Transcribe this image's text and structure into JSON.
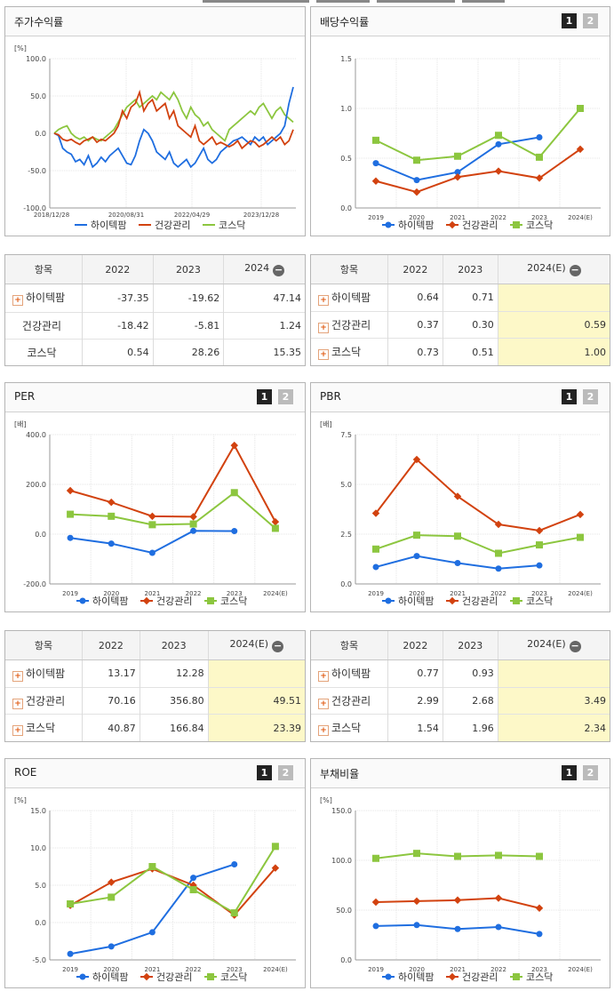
{
  "colors": {
    "s1": "#1f6ee0",
    "s2": "#d2420f",
    "s3": "#8cc63f",
    "grid": "#e4e4e4"
  },
  "legend": [
    "하이텍팜",
    "건강관리",
    "코스닥"
  ],
  "panels": {
    "stock": {
      "title": "주가수익률",
      "unit": "[%]"
    },
    "dividend": {
      "title": "배당수익률",
      "unit": "",
      "pages": [
        "1",
        "2"
      ]
    },
    "per": {
      "title": "PER",
      "unit": "[배]",
      "pages": [
        "1",
        "2"
      ]
    },
    "pbr": {
      "title": "PBR",
      "unit": "[배]",
      "pages": [
        "1",
        "2"
      ]
    },
    "roe": {
      "title": "ROE",
      "unit": "[%]",
      "pages": [
        "1",
        "2"
      ]
    },
    "debt": {
      "title": "부채비율",
      "unit": "[%]",
      "pages": [
        "1",
        "2"
      ]
    }
  },
  "tables": {
    "stock": {
      "head": [
        "항목",
        "2022",
        "2023",
        "2024"
      ],
      "rows": [
        {
          "name": "하이텍팜",
          "vals": [
            "-37.35",
            "-19.62",
            "47.14"
          ]
        },
        {
          "name": "건강관리",
          "vals": [
            "-18.42",
            "-5.81",
            "1.24"
          ]
        },
        {
          "name": "코스닥",
          "vals": [
            "0.54",
            "28.26",
            "15.35"
          ]
        }
      ]
    },
    "dividend": {
      "head": [
        "항목",
        "2022",
        "2023",
        "2024(E)"
      ],
      "rows": [
        {
          "name": "하이텍팜",
          "vals": [
            "0.64",
            "0.71",
            ""
          ]
        },
        {
          "name": "건강관리",
          "vals": [
            "0.37",
            "0.30",
            "0.59"
          ]
        },
        {
          "name": "코스닥",
          "vals": [
            "0.73",
            "0.51",
            "1.00"
          ]
        }
      ]
    },
    "per": {
      "head": [
        "항목",
        "2022",
        "2023",
        "2024(E)"
      ],
      "rows": [
        {
          "name": "하이텍팜",
          "vals": [
            "13.17",
            "12.28",
            ""
          ]
        },
        {
          "name": "건강관리",
          "vals": [
            "70.16",
            "356.80",
            "49.51"
          ]
        },
        {
          "name": "코스닥",
          "vals": [
            "40.87",
            "166.84",
            "23.39"
          ]
        }
      ]
    },
    "pbr": {
      "head": [
        "항목",
        "2022",
        "2023",
        "2024(E)"
      ],
      "rows": [
        {
          "name": "하이텍팜",
          "vals": [
            "0.77",
            "0.93",
            ""
          ]
        },
        {
          "name": "건강관리",
          "vals": [
            "2.99",
            "2.68",
            "3.49"
          ]
        },
        {
          "name": "코스닥",
          "vals": [
            "1.54",
            "1.96",
            "2.34"
          ]
        }
      ]
    }
  },
  "chart_data": [
    {
      "id": "stock",
      "type": "line",
      "title": "주가수익률",
      "ylabel": "[%]",
      "ylim": [
        -100,
        100
      ],
      "yticks": [
        "100.0",
        "50.0",
        "0.0",
        "-50.0",
        "-100.0"
      ],
      "xticks": [
        "2018/12/28",
        "2020/08/31",
        "2022/04/29",
        "2023/12/28"
      ],
      "series": [
        {
          "name": "하이텍팜",
          "values": [
            0,
            -3,
            -20,
            -25,
            -28,
            -38,
            -35,
            -42,
            -30,
            -45,
            -40,
            -32,
            -38,
            -30,
            -25,
            -20,
            -30,
            -40,
            -42,
            -30,
            -10,
            5,
            0,
            -10,
            -25,
            -30,
            -35,
            -25,
            -40,
            -45,
            -40,
            -35,
            -45,
            -40,
            -30,
            -20,
            -35,
            -40,
            -35,
            -25,
            -20,
            -15,
            -10,
            -8,
            -5,
            -10,
            -15,
            -5,
            -10,
            -5,
            -15,
            -10,
            -5,
            0,
            10,
            40,
            62
          ]
        },
        {
          "name": "건강관리",
          "values": [
            0,
            -2,
            -8,
            -10,
            -8,
            -12,
            -15,
            -10,
            -8,
            -5,
            -12,
            -8,
            -10,
            -5,
            0,
            10,
            30,
            20,
            35,
            40,
            55,
            30,
            40,
            45,
            30,
            35,
            40,
            20,
            30,
            10,
            5,
            0,
            -5,
            10,
            -10,
            -15,
            -10,
            -5,
            -15,
            -12,
            -15,
            -18,
            -15,
            -10,
            -20,
            -15,
            -10,
            -12,
            -18,
            -15,
            -10,
            -5,
            -10,
            -5,
            -15,
            -10,
            5
          ]
        },
        {
          "name": "코스닥",
          "values": [
            0,
            5,
            8,
            10,
            0,
            -5,
            -8,
            -5,
            -10,
            -5,
            -8,
            -10,
            -5,
            0,
            5,
            15,
            25,
            35,
            40,
            45,
            35,
            40,
            45,
            50,
            45,
            55,
            50,
            45,
            55,
            45,
            30,
            20,
            35,
            25,
            20,
            10,
            15,
            5,
            0,
            -5,
            -10,
            5,
            10,
            15,
            20,
            25,
            30,
            25,
            35,
            40,
            30,
            20,
            30,
            35,
            25,
            20,
            15
          ]
        }
      ]
    },
    {
      "id": "dividend",
      "type": "line",
      "title": "배당수익률",
      "ylabel": "",
      "ylim": [
        0,
        1.5
      ],
      "yticks": [
        "1.5",
        "1.0",
        "0.5",
        "0.0"
      ],
      "categories": [
        "2019",
        "2020",
        "2021",
        "2022",
        "2023",
        "2024(E)"
      ],
      "series": [
        {
          "name": "하이텍팜",
          "values": [
            0.45,
            0.28,
            0.36,
            0.64,
            0.71,
            null
          ]
        },
        {
          "name": "건강관리",
          "values": [
            0.27,
            0.16,
            0.31,
            0.37,
            0.3,
            0.59
          ]
        },
        {
          "name": "코스닥",
          "values": [
            0.68,
            0.48,
            0.52,
            0.73,
            0.51,
            1.0
          ]
        }
      ]
    },
    {
      "id": "per",
      "type": "line",
      "title": "PER",
      "ylabel": "[배]",
      "ylim": [
        -200,
        400
      ],
      "yticks": [
        "400.0",
        "200.0",
        "0.0",
        "-200.0"
      ],
      "categories": [
        "2019",
        "2020",
        "2021",
        "2022",
        "2023",
        "2024(E)"
      ],
      "series": [
        {
          "name": "하이텍팜",
          "values": [
            -15,
            -38,
            -75,
            13.17,
            12.28,
            null
          ]
        },
        {
          "name": "건강관리",
          "values": [
            175,
            128,
            72,
            70.16,
            356.8,
            49.51
          ]
        },
        {
          "name": "코스닥",
          "values": [
            80,
            72,
            38,
            40.87,
            166.84,
            23.39
          ]
        }
      ]
    },
    {
      "id": "pbr",
      "type": "line",
      "title": "PBR",
      "ylabel": "[배]",
      "ylim": [
        0,
        7.5
      ],
      "yticks": [
        "7.5",
        "5.0",
        "2.5",
        "0.0"
      ],
      "categories": [
        "2019",
        "2020",
        "2021",
        "2022",
        "2023",
        "2024(E)"
      ],
      "series": [
        {
          "name": "하이텍팜",
          "values": [
            0.85,
            1.4,
            1.05,
            0.77,
            0.93,
            null
          ]
        },
        {
          "name": "건강관리",
          "values": [
            3.55,
            6.25,
            4.4,
            2.99,
            2.68,
            3.49
          ]
        },
        {
          "name": "코스닥",
          "values": [
            1.75,
            2.45,
            2.4,
            1.54,
            1.96,
            2.34
          ]
        }
      ]
    },
    {
      "id": "roe",
      "type": "line",
      "title": "ROE",
      "ylabel": "[%]",
      "ylim": [
        -5,
        15
      ],
      "yticks": [
        "15.0",
        "10.0",
        "5.0",
        "0.0",
        "-5.0"
      ],
      "categories": [
        "2019",
        "2020",
        "2021",
        "2022",
        "2023",
        "2024(E)"
      ],
      "series": [
        {
          "name": "하이텍팜",
          "values": [
            -4.2,
            -3.2,
            -1.3,
            6.0,
            7.8,
            null
          ]
        },
        {
          "name": "건강관리",
          "values": [
            2.3,
            5.4,
            7.2,
            5.0,
            1.0,
            7.3
          ]
        },
        {
          "name": "코스닥",
          "values": [
            2.5,
            3.4,
            7.5,
            4.4,
            1.3,
            10.2
          ]
        }
      ]
    },
    {
      "id": "debt",
      "type": "line",
      "title": "부채비율",
      "ylabel": "[%]",
      "ylim": [
        0,
        150
      ],
      "yticks": [
        "150.0",
        "100.0",
        "50.0",
        "0.0"
      ],
      "categories": [
        "2019",
        "2020",
        "2021",
        "2022",
        "2023",
        "2024(E)"
      ],
      "series": [
        {
          "name": "하이텍팜",
          "values": [
            34,
            35,
            31,
            33,
            26,
            null
          ]
        },
        {
          "name": "건강관리",
          "values": [
            58,
            59,
            60,
            62,
            52,
            null
          ]
        },
        {
          "name": "코스닥",
          "values": [
            102,
            107,
            104,
            105,
            104,
            null
          ]
        }
      ]
    }
  ]
}
